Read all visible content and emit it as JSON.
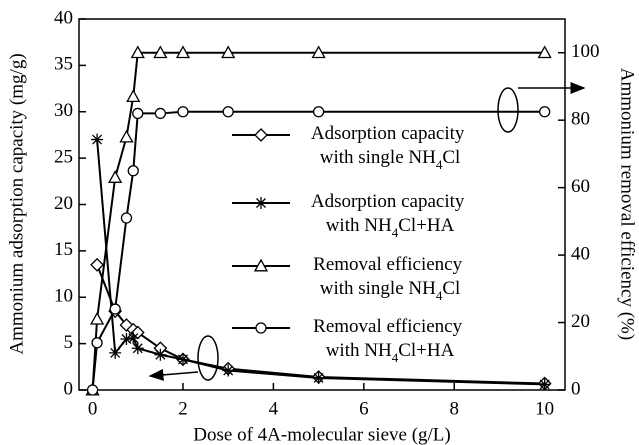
{
  "chart_data": {
    "type": "line",
    "xlabel": "Dose of 4A-molecular sieve (g/L)",
    "ylabel": "Ammonium adsorption capacity (mg/g)",
    "y2label": "Ammonium removal efficiency (%)",
    "x": [
      0,
      0.1,
      0.5,
      0.75,
      0.9,
      1.0,
      1.5,
      2,
      3,
      5,
      10
    ],
    "xlim": [
      -0.3,
      10.45
    ],
    "xticks": [
      0,
      2,
      4,
      6,
      8,
      10
    ],
    "ylim": [
      0,
      40
    ],
    "yticks": [
      0,
      5,
      10,
      15,
      20,
      25,
      30,
      35,
      40
    ],
    "y2lim": [
      0,
      110
    ],
    "y2ticks": [
      0,
      20,
      40,
      60,
      80,
      100
    ],
    "series": [
      {
        "name": "Adsorption capacity with single NH4Cl",
        "color": "#000000",
        "marker": "diamond",
        "values": [
          null,
          13.5,
          8.5,
          7.0,
          6.5,
          6.2,
          4.5,
          3.3,
          2.3,
          1.4,
          0.7
        ]
      },
      {
        "name": "Adsorption capacity with NH4Cl+HA",
        "color": "#000000",
        "marker": "asterisk",
        "values": [
          null,
          27,
          4.0,
          5.5,
          5.6,
          4.5,
          3.8,
          3.3,
          2.1,
          1.3,
          0.6
        ]
      },
      {
        "name": "Removal efficiency with single NH4Cl",
        "color": "#000000",
        "marker": "triangle",
        "axis": "y2",
        "values": [
          0,
          21,
          63,
          75,
          87,
          100,
          100,
          100,
          100,
          100,
          100
        ]
      },
      {
        "name": "Removal efficiency with NH4Cl+HA",
        "color": "#000000",
        "marker": "circle",
        "axis": "y2",
        "values": [
          0,
          14,
          24,
          51,
          65,
          82,
          82,
          82.5,
          82.5,
          82.5,
          82.5
        ]
      }
    ]
  }
}
